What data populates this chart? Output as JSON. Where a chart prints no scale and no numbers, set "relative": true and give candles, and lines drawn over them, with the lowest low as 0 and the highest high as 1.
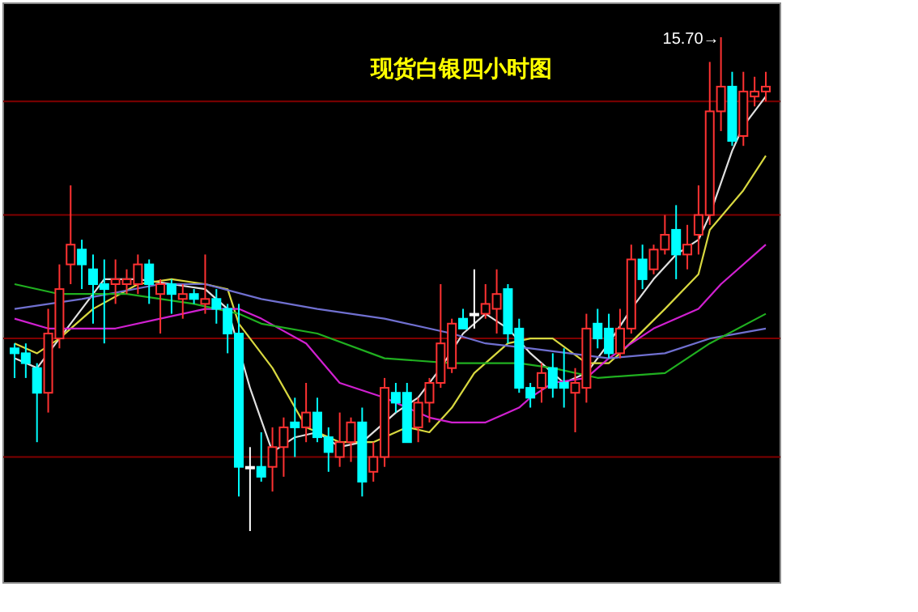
{
  "chart_data": {
    "type": "candlestick",
    "title": "现货白银四小时图",
    "relative": true,
    "annotations": [
      "15.70→"
    ],
    "categories": [
      null,
      null,
      null,
      null,
      null,
      null,
      null,
      null,
      null,
      null,
      null,
      null,
      null,
      null,
      null,
      null,
      null,
      null,
      null,
      null,
      null,
      null,
      null,
      null,
      null,
      null,
      null,
      null,
      null,
      null,
      null,
      null,
      null,
      null,
      null,
      null,
      null,
      null,
      null,
      null,
      null,
      null,
      null,
      null,
      null,
      null,
      null,
      null,
      null,
      null,
      null,
      null,
      null,
      null,
      null,
      null,
      null,
      null,
      null,
      null,
      null,
      null,
      null,
      null,
      null,
      null,
      null,
      null
    ],
    "ohlc": [
      [
        0.37,
        0.38,
        0.31,
        0.36
      ],
      [
        0.36,
        0.38,
        0.31,
        0.34
      ],
      [
        0.33,
        0.34,
        0.18,
        0.28
      ],
      [
        0.28,
        0.45,
        0.24,
        0.4
      ],
      [
        0.39,
        0.54,
        0.37,
        0.49
      ],
      [
        0.54,
        0.7,
        0.5,
        0.58
      ],
      [
        0.57,
        0.59,
        0.49,
        0.54
      ],
      [
        0.53,
        0.56,
        0.42,
        0.5
      ],
      [
        0.5,
        0.55,
        0.38,
        0.49
      ],
      [
        0.5,
        0.55,
        0.46,
        0.51
      ],
      [
        0.5,
        0.53,
        0.48,
        0.51
      ],
      [
        0.5,
        0.56,
        0.48,
        0.54
      ],
      [
        0.54,
        0.55,
        0.46,
        0.5
      ],
      [
        0.48,
        0.51,
        0.4,
        0.5
      ],
      [
        0.5,
        0.51,
        0.44,
        0.48
      ],
      [
        0.47,
        0.5,
        0.43,
        0.48
      ],
      [
        0.48,
        0.49,
        0.46,
        0.47
      ],
      [
        0.46,
        0.56,
        0.44,
        0.47
      ],
      [
        0.47,
        0.49,
        0.42,
        0.45
      ],
      [
        0.45,
        0.46,
        0.36,
        0.4
      ],
      [
        0.4,
        0.46,
        0.07,
        0.13
      ],
      [
        0.13,
        0.17,
        0,
        0.13
      ],
      [
        0.13,
        0.2,
        0.1,
        0.11
      ],
      [
        0.13,
        0.21,
        0.08,
        0.17
      ],
      [
        0.17,
        0.23,
        0.11,
        0.21
      ],
      [
        0.22,
        0.27,
        0.15,
        0.21
      ],
      [
        0.21,
        0.3,
        0.18,
        0.24
      ],
      [
        0.24,
        0.27,
        0.18,
        0.19
      ],
      [
        0.19,
        0.21,
        0.12,
        0.16
      ],
      [
        0.15,
        0.24,
        0.13,
        0.18
      ],
      [
        0.18,
        0.23,
        0.14,
        0.22
      ],
      [
        0.22,
        0.25,
        0.07,
        0.1
      ],
      [
        0.12,
        0.18,
        0.1,
        0.15
      ],
      [
        0.15,
        0.31,
        0.13,
        0.29
      ],
      [
        0.28,
        0.3,
        0.24,
        0.26
      ],
      [
        0.28,
        0.3,
        0.18,
        0.18
      ],
      [
        0.21,
        0.27,
        0.18,
        0.26
      ],
      [
        0.26,
        0.31,
        0.22,
        0.3
      ],
      [
        0.3,
        0.5,
        0.29,
        0.38
      ],
      [
        0.33,
        0.43,
        0.32,
        0.42
      ],
      [
        0.43,
        0.45,
        0.41,
        0.41
      ],
      [
        0.44,
        0.53,
        0.41,
        0.44
      ],
      [
        0.44,
        0.5,
        0.43,
        0.46
      ],
      [
        0.45,
        0.53,
        0.4,
        0.48
      ],
      [
        0.49,
        0.5,
        0.38,
        0.4
      ],
      [
        0.41,
        0.43,
        0.28,
        0.29
      ],
      [
        0.29,
        0.3,
        0.25,
        0.27
      ],
      [
        0.29,
        0.34,
        0.26,
        0.32
      ],
      [
        0.33,
        0.36,
        0.27,
        0.29
      ],
      [
        0.3,
        0.37,
        0.25,
        0.29
      ],
      [
        0.28,
        0.33,
        0.2,
        0.3
      ],
      [
        0.29,
        0.44,
        0.26,
        0.41
      ],
      [
        0.42,
        0.45,
        0.37,
        0.39
      ],
      [
        0.41,
        0.44,
        0.35,
        0.36
      ],
      [
        0.36,
        0.45,
        0.35,
        0.41
      ],
      [
        0.41,
        0.58,
        0.4,
        0.55
      ],
      [
        0.55,
        0.58,
        0.49,
        0.51
      ],
      [
        0.53,
        0.58,
        0.52,
        0.57
      ],
      [
        0.57,
        0.64,
        0.56,
        0.6
      ],
      [
        0.61,
        0.66,
        0.51,
        0.56
      ],
      [
        0.56,
        0.62,
        0.53,
        0.58
      ],
      [
        0.6,
        0.7,
        0.56,
        0.64
      ],
      [
        0.64,
        0.95,
        0.62,
        0.85
      ],
      [
        0.85,
        1,
        0.81,
        0.9
      ],
      [
        0.9,
        0.93,
        0.78,
        0.79
      ],
      [
        0.8,
        0.93,
        0.78,
        0.89
      ],
      [
        0.88,
        0.92,
        0.86,
        0.89
      ],
      [
        0.89,
        0.93,
        0.87,
        0.9
      ]
    ],
    "colors": [
      "#00ffff",
      "#00ffff",
      "#00ffff",
      "#ff3232",
      "#ff3232",
      "#ff3232",
      "#00ffff",
      "#00ffff",
      "#00ffff",
      "#ff3232",
      "#ff3232",
      "#ff3232",
      "#00ffff",
      "#ff3232",
      "#00ffff",
      "#ff3232",
      "#00ffff",
      "#ff3232",
      "#00ffff",
      "#00ffff",
      "#00ffff",
      "#ffffff",
      "#00ffff",
      "#ff3232",
      "#ff3232",
      "#00ffff",
      "#ff3232",
      "#00ffff",
      "#00ffff",
      "#ff3232",
      "#ff3232",
      "#00ffff",
      "#ff3232",
      "#ff3232",
      "#00ffff",
      "#00ffff",
      "#ff3232",
      "#ff3232",
      "#ff3232",
      "#ff3232",
      "#00ffff",
      "#ffffff",
      "#ff3232",
      "#ff3232",
      "#00ffff",
      "#00ffff",
      "#00ffff",
      "#ff3232",
      "#00ffff",
      "#00ffff",
      "#ff3232",
      "#ff3232",
      "#00ffff",
      "#00ffff",
      "#ff3232",
      "#ff3232",
      "#00ffff",
      "#ff3232",
      "#ff3232",
      "#00ffff",
      "#ff3232",
      "#ff3232",
      "#ff3232",
      "#ff3232",
      "#00ffff",
      "#ff3232",
      "#ff3232",
      "#ff3232"
    ],
    "series": [
      {
        "type": "line",
        "color": "#e0e0e0",
        "values": [
          0.35,
          null,
          0.33,
          null,
          null,
          0.42,
          null,
          null,
          0.51,
          null,
          null,
          0.51,
          null,
          null,
          0.5,
          null,
          null,
          0.49,
          null,
          0.45,
          null,
          0.29,
          null,
          0.16,
          null,
          0.19,
          null,
          0.2,
          null,
          0.17,
          null,
          0.18,
          null,
          null,
          0.24,
          null,
          0.27,
          null,
          0.33,
          null,
          0.4,
          null,
          0.44,
          null,
          0.41,
          null,
          0.36,
          null,
          null,
          0.3,
          null,
          0.32,
          null,
          0.38,
          null,
          0.45,
          null,
          0.51,
          null,
          0.56,
          null,
          0.59,
          0.64,
          null,
          0.77,
          0.82,
          null,
          0.88
        ]
      },
      {
        "type": "line",
        "color": "#d8d840",
        "values": [
          0.38,
          null,
          0.36,
          null,
          0.39,
          null,
          null,
          0.45,
          null,
          null,
          null,
          0.5,
          null,
          null,
          0.51,
          null,
          null,
          0.5,
          null,
          0.49,
          0.42,
          null,
          null,
          0.33,
          null,
          null,
          0.21,
          null,
          null,
          0.18,
          null,
          null,
          0.18,
          null,
          null,
          0.21,
          null,
          0.2,
          null,
          0.25,
          null,
          0.32,
          null,
          null,
          0.38,
          null,
          0.39,
          null,
          0.39,
          null,
          null,
          0.34,
          null,
          0.34,
          0.36,
          null,
          null,
          null,
          0.45,
          null,
          null,
          0.52,
          0.61,
          null,
          null,
          0.69,
          null,
          0.76
        ]
      },
      {
        "type": "line",
        "color": "#d020d0",
        "values": [
          0.43,
          null,
          null,
          0.41,
          null,
          null,
          null,
          null,
          null,
          0.41,
          null,
          null,
          null,
          0.43,
          null,
          null,
          null,
          0.45,
          null,
          null,
          0.45,
          null,
          0.43,
          null,
          null,
          null,
          0.38,
          null,
          null,
          0.3,
          null,
          null,
          null,
          0.27,
          null,
          null,
          null,
          0.23,
          null,
          0.22,
          null,
          null,
          0.22,
          null,
          null,
          0.25,
          0.27,
          null,
          0.3,
          null,
          null,
          0.31,
          null,
          0.35,
          null,
          null,
          null,
          0.41,
          null,
          null,
          null,
          0.45,
          null,
          0.5,
          null,
          null,
          null,
          0.58
        ]
      },
      {
        "type": "line",
        "color": "#7070d0",
        "values": [
          0.45,
          null,
          null,
          null,
          null,
          null,
          0.47,
          null,
          null,
          null,
          null,
          null,
          null,
          0.5,
          null,
          null,
          null,
          0.5,
          null,
          null,
          null,
          null,
          0.47,
          null,
          null,
          null,
          null,
          0.45,
          null,
          null,
          null,
          null,
          null,
          0.43,
          null,
          null,
          null,
          null,
          null,
          0.4,
          null,
          null,
          0.38,
          null,
          null,
          null,
          0.37,
          null,
          null,
          null,
          null,
          null,
          null,
          0.35,
          null,
          null,
          null,
          null,
          0.36,
          null,
          null,
          null,
          0.39,
          null,
          null,
          null,
          null,
          0.41
        ]
      },
      {
        "type": "line",
        "color": "#20b020",
        "values": [
          0.5,
          null,
          null,
          null,
          0.48,
          null,
          null,
          null,
          null,
          null,
          0.48,
          null,
          null,
          null,
          null,
          null,
          0.46,
          null,
          null,
          null,
          0.44,
          null,
          0.42,
          null,
          null,
          null,
          null,
          0.4,
          null,
          null,
          null,
          null,
          null,
          0.35,
          null,
          null,
          null,
          null,
          null,
          0.34,
          null,
          null,
          null,
          null,
          null,
          0.34,
          null,
          null,
          0.33,
          null,
          null,
          null,
          0.31,
          null,
          null,
          null,
          null,
          null,
          0.32,
          null,
          null,
          null,
          0.38,
          null,
          null,
          null,
          null,
          0.44
        ]
      }
    ],
    "ref_lines": [
      {
        "axis": "y",
        "value": 0.87,
        "color": "#800000"
      },
      {
        "axis": "y",
        "value": 0.64,
        "color": "#800000"
      },
      {
        "axis": "y",
        "value": 0.39,
        "color": "#800000"
      },
      {
        "axis": "y",
        "value": 0.15,
        "color": "#800000"
      }
    ]
  }
}
